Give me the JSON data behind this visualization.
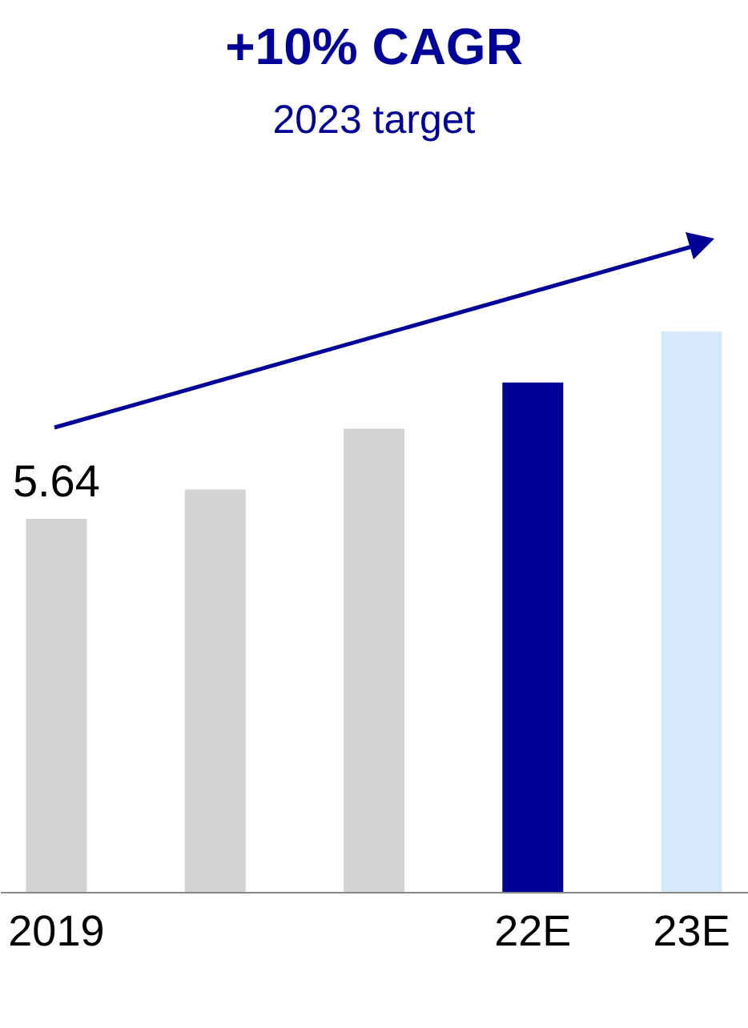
{
  "chart_data": {
    "type": "bar",
    "title": "+10% CAGR",
    "subtitle": "2023 target",
    "categories": [
      "2019",
      null,
      null,
      "22E",
      "23E"
    ],
    "values": [
      5.64,
      6.08,
      7.0,
      7.7,
      8.47
    ],
    "colors": [
      "#d3d3d3",
      "#d3d3d3",
      "#d3d3d3",
      "#000099",
      "#d6e9fb"
    ],
    "value_labels": [
      "5.64",
      null,
      null,
      null,
      null
    ],
    "grid": false,
    "legend": false
  }
}
